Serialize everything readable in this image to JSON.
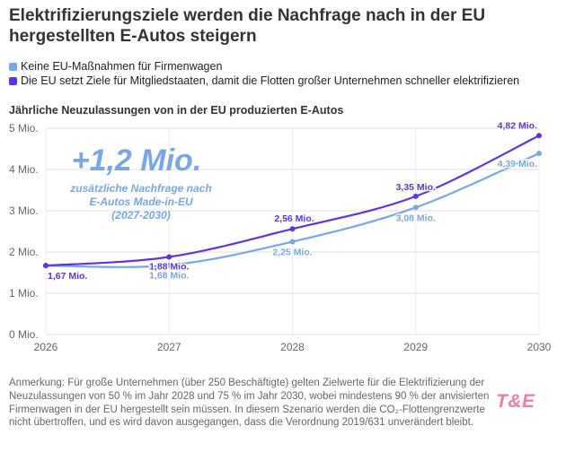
{
  "title": "Elektrifizierungsziele werden die Nachfrage nach in der EU hergestellten E-Autos steigern",
  "legend": [
    {
      "label": "Keine EU-Maßnahmen für Firmenwagen",
      "color": "#79a7e6"
    },
    {
      "label": "Die EU setzt Ziele für Mitgliedstaaten, damit die Flotten großer Unternehmen schneller elektrifizieren",
      "color": "#5a35e0"
    }
  ],
  "subtitle": "Jährliche Neuzulassungen von in der EU produzierten E-Autos",
  "callout": {
    "big": "+1,2 Mio.",
    "line1": "zusätzliche Nachfrage nach",
    "line2": "E-Autos Made-in-EU",
    "line3": "(2027-2030)"
  },
  "note": "Anmerkung: Für große Unternehmen (über 250 Beschäftigte) gelten Zielwerte für die Elektrifizierung der Neuzulassungen von 50 % im Jahr 2028 und 75 % im Jahr 2030, wobei mindestens 90 % der anvisierten Firmenwagen in der EU hergestellt sein müssen. In diesem Szenario werden die CO₂-Flottengrenzwerte nicht übertroffen, und es wird davon ausgegangen, dass die Verordnung 2019/631 unverändert bleibt.",
  "logo": "T&E",
  "chart_data": {
    "type": "line",
    "x": [
      2026,
      2027,
      2028,
      2029,
      2030
    ],
    "xticks": [
      "2026",
      "2027",
      "2028",
      "2029",
      "2030"
    ],
    "yticks": [
      "0 Mio.",
      "1 Mio.",
      "2 Mio.",
      "3 Mio.",
      "4 Mio.",
      "5 Mio."
    ],
    "ylim": [
      0,
      5
    ],
    "grid": true,
    "legend_position": "top-left",
    "series": [
      {
        "name": "Keine EU-Maßnahmen für Firmenwagen",
        "color": "#79a7e6",
        "values": [
          1.67,
          1.68,
          2.25,
          3.08,
          4.39
        ],
        "labels": [
          "",
          "1,68 Mio.",
          "2,25 Mio.",
          "3,08 Mio.",
          "4,39 Mio."
        ]
      },
      {
        "name": "Die EU setzt Ziele für Mitgliedstaaten, damit die Flotten großer Unternehmen schneller elektrifizieren",
        "color": "#5a35e0",
        "values": [
          1.67,
          1.88,
          2.56,
          3.35,
          4.82
        ],
        "labels": [
          "1,67 Mio.",
          "1,88 Mio.",
          "2,56 Mio.",
          "3,35 Mio.",
          "4,82 Mio."
        ]
      }
    ]
  }
}
